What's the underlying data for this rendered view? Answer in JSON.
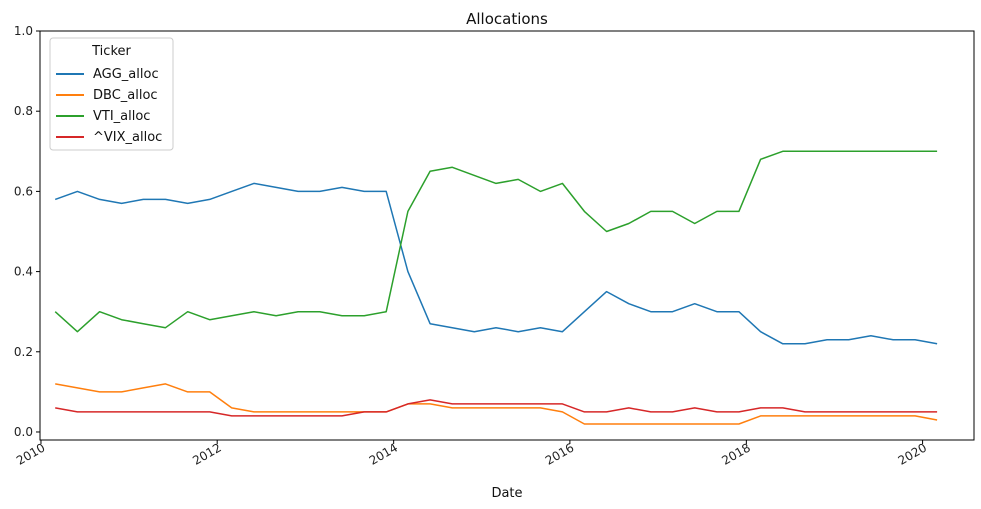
{
  "chart_data": {
    "type": "line",
    "title": "Allocations",
    "xlabel": "Date",
    "ylabel": "",
    "xlim": [
      "2009-12-28",
      "2020-08-01"
    ],
    "ylim": [
      -0.02,
      1.0
    ],
    "x_ticks": [
      "2010",
      "2012",
      "2014",
      "2016",
      "2018",
      "2020"
    ],
    "y_ticks": [
      "0.0",
      "0.2",
      "0.4",
      "0.6",
      "0.8",
      "1.0"
    ],
    "grid": false,
    "legend": {
      "title": "Ticker",
      "placement": "top-left"
    },
    "series": [
      {
        "name": "AGG_alloc",
        "color": "#1f77b4",
        "points": [
          [
            "2010-03-01",
            0.58
          ],
          [
            "2010-06-01",
            0.6
          ],
          [
            "2010-09-01",
            0.58
          ],
          [
            "2010-12-01",
            0.57
          ],
          [
            "2011-03-01",
            0.58
          ],
          [
            "2011-06-01",
            0.58
          ],
          [
            "2011-09-01",
            0.57
          ],
          [
            "2011-12-01",
            0.58
          ],
          [
            "2012-03-01",
            0.6
          ],
          [
            "2012-06-01",
            0.62
          ],
          [
            "2012-09-01",
            0.61
          ],
          [
            "2012-12-01",
            0.6
          ],
          [
            "2013-03-01",
            0.6
          ],
          [
            "2013-06-01",
            0.61
          ],
          [
            "2013-09-01",
            0.6
          ],
          [
            "2013-12-01",
            0.6
          ],
          [
            "2014-03-01",
            0.4
          ],
          [
            "2014-06-01",
            0.27
          ],
          [
            "2014-09-01",
            0.26
          ],
          [
            "2014-12-01",
            0.25
          ],
          [
            "2015-03-01",
            0.26
          ],
          [
            "2015-06-01",
            0.25
          ],
          [
            "2015-09-01",
            0.26
          ],
          [
            "2015-12-01",
            0.25
          ],
          [
            "2016-03-01",
            0.3
          ],
          [
            "2016-06-01",
            0.35
          ],
          [
            "2016-09-01",
            0.32
          ],
          [
            "2016-12-01",
            0.3
          ],
          [
            "2017-03-01",
            0.3
          ],
          [
            "2017-06-01",
            0.32
          ],
          [
            "2017-09-01",
            0.3
          ],
          [
            "2017-12-01",
            0.3
          ],
          [
            "2018-03-01",
            0.25
          ],
          [
            "2018-06-01",
            0.22
          ],
          [
            "2018-09-01",
            0.22
          ],
          [
            "2018-12-01",
            0.23
          ],
          [
            "2019-03-01",
            0.23
          ],
          [
            "2019-06-01",
            0.24
          ],
          [
            "2019-09-01",
            0.23
          ],
          [
            "2019-12-01",
            0.23
          ],
          [
            "2020-03-01",
            0.22
          ]
        ]
      },
      {
        "name": "DBC_alloc",
        "color": "#ff7f0e",
        "points": [
          [
            "2010-03-01",
            0.12
          ],
          [
            "2010-06-01",
            0.11
          ],
          [
            "2010-09-01",
            0.1
          ],
          [
            "2010-12-01",
            0.1
          ],
          [
            "2011-03-01",
            0.11
          ],
          [
            "2011-06-01",
            0.12
          ],
          [
            "2011-09-01",
            0.1
          ],
          [
            "2011-12-01",
            0.1
          ],
          [
            "2012-03-01",
            0.06
          ],
          [
            "2012-06-01",
            0.05
          ],
          [
            "2012-09-01",
            0.05
          ],
          [
            "2012-12-01",
            0.05
          ],
          [
            "2013-03-01",
            0.05
          ],
          [
            "2013-06-01",
            0.05
          ],
          [
            "2013-09-01",
            0.05
          ],
          [
            "2013-12-01",
            0.05
          ],
          [
            "2014-03-01",
            0.07
          ],
          [
            "2014-06-01",
            0.07
          ],
          [
            "2014-09-01",
            0.06
          ],
          [
            "2014-12-01",
            0.06
          ],
          [
            "2015-03-01",
            0.06
          ],
          [
            "2015-06-01",
            0.06
          ],
          [
            "2015-09-01",
            0.06
          ],
          [
            "2015-12-01",
            0.05
          ],
          [
            "2016-03-01",
            0.02
          ],
          [
            "2016-06-01",
            0.02
          ],
          [
            "2016-09-01",
            0.02
          ],
          [
            "2016-12-01",
            0.02
          ],
          [
            "2017-03-01",
            0.02
          ],
          [
            "2017-06-01",
            0.02
          ],
          [
            "2017-09-01",
            0.02
          ],
          [
            "2017-12-01",
            0.02
          ],
          [
            "2018-03-01",
            0.04
          ],
          [
            "2018-06-01",
            0.04
          ],
          [
            "2018-09-01",
            0.04
          ],
          [
            "2018-12-01",
            0.04
          ],
          [
            "2019-03-01",
            0.04
          ],
          [
            "2019-06-01",
            0.04
          ],
          [
            "2019-09-01",
            0.04
          ],
          [
            "2019-12-01",
            0.04
          ],
          [
            "2020-03-01",
            0.03
          ]
        ]
      },
      {
        "name": "VTI_alloc",
        "color": "#2ca02c",
        "points": [
          [
            "2010-03-01",
            0.3
          ],
          [
            "2010-06-01",
            0.25
          ],
          [
            "2010-09-01",
            0.3
          ],
          [
            "2010-12-01",
            0.28
          ],
          [
            "2011-03-01",
            0.27
          ],
          [
            "2011-06-01",
            0.26
          ],
          [
            "2011-09-01",
            0.3
          ],
          [
            "2011-12-01",
            0.28
          ],
          [
            "2012-03-01",
            0.29
          ],
          [
            "2012-06-01",
            0.3
          ],
          [
            "2012-09-01",
            0.29
          ],
          [
            "2012-12-01",
            0.3
          ],
          [
            "2013-03-01",
            0.3
          ],
          [
            "2013-06-01",
            0.29
          ],
          [
            "2013-09-01",
            0.29
          ],
          [
            "2013-12-01",
            0.3
          ],
          [
            "2014-03-01",
            0.55
          ],
          [
            "2014-06-01",
            0.65
          ],
          [
            "2014-09-01",
            0.66
          ],
          [
            "2014-12-01",
            0.64
          ],
          [
            "2015-03-01",
            0.62
          ],
          [
            "2015-06-01",
            0.63
          ],
          [
            "2015-09-01",
            0.6
          ],
          [
            "2015-12-01",
            0.62
          ],
          [
            "2016-03-01",
            0.55
          ],
          [
            "2016-06-01",
            0.5
          ],
          [
            "2016-09-01",
            0.52
          ],
          [
            "2016-12-01",
            0.55
          ],
          [
            "2017-03-01",
            0.55
          ],
          [
            "2017-06-01",
            0.52
          ],
          [
            "2017-09-01",
            0.55
          ],
          [
            "2017-12-01",
            0.55
          ],
          [
            "2018-03-01",
            0.68
          ],
          [
            "2018-06-01",
            0.7
          ],
          [
            "2018-09-01",
            0.7
          ],
          [
            "2018-12-01",
            0.7
          ],
          [
            "2019-03-01",
            0.7
          ],
          [
            "2019-06-01",
            0.7
          ],
          [
            "2019-09-01",
            0.7
          ],
          [
            "2019-12-01",
            0.7
          ],
          [
            "2020-03-01",
            0.7
          ]
        ]
      },
      {
        "name": "^VIX_alloc",
        "color": "#d62728",
        "points": [
          [
            "2010-03-01",
            0.06
          ],
          [
            "2010-06-01",
            0.05
          ],
          [
            "2010-09-01",
            0.05
          ],
          [
            "2010-12-01",
            0.05
          ],
          [
            "2011-03-01",
            0.05
          ],
          [
            "2011-06-01",
            0.05
          ],
          [
            "2011-09-01",
            0.05
          ],
          [
            "2011-12-01",
            0.05
          ],
          [
            "2012-03-01",
            0.04
          ],
          [
            "2012-06-01",
            0.04
          ],
          [
            "2012-09-01",
            0.04
          ],
          [
            "2012-12-01",
            0.04
          ],
          [
            "2013-03-01",
            0.04
          ],
          [
            "2013-06-01",
            0.04
          ],
          [
            "2013-09-01",
            0.05
          ],
          [
            "2013-12-01",
            0.05
          ],
          [
            "2014-03-01",
            0.07
          ],
          [
            "2014-06-01",
            0.08
          ],
          [
            "2014-09-01",
            0.07
          ],
          [
            "2014-12-01",
            0.07
          ],
          [
            "2015-03-01",
            0.07
          ],
          [
            "2015-06-01",
            0.07
          ],
          [
            "2015-09-01",
            0.07
          ],
          [
            "2015-12-01",
            0.07
          ],
          [
            "2016-03-01",
            0.05
          ],
          [
            "2016-06-01",
            0.05
          ],
          [
            "2016-09-01",
            0.06
          ],
          [
            "2016-12-01",
            0.05
          ],
          [
            "2017-03-01",
            0.05
          ],
          [
            "2017-06-01",
            0.06
          ],
          [
            "2017-09-01",
            0.05
          ],
          [
            "2017-12-01",
            0.05
          ],
          [
            "2018-03-01",
            0.06
          ],
          [
            "2018-06-01",
            0.06
          ],
          [
            "2018-09-01",
            0.05
          ],
          [
            "2018-12-01",
            0.05
          ],
          [
            "2019-03-01",
            0.05
          ],
          [
            "2019-06-01",
            0.05
          ],
          [
            "2019-09-01",
            0.05
          ],
          [
            "2019-12-01",
            0.05
          ],
          [
            "2020-03-01",
            0.05
          ]
        ]
      }
    ]
  }
}
